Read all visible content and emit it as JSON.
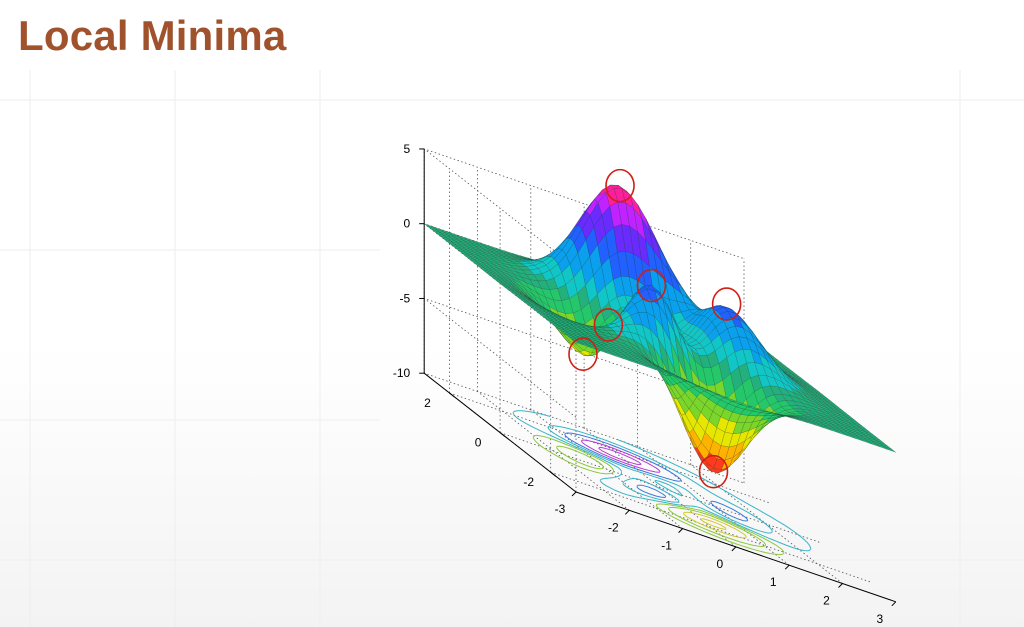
{
  "slide": {
    "title": "Local Minima"
  },
  "colors": {
    "title": "#a0522d",
    "marker": "#d21e14",
    "contour_pos": "#3ca0e6",
    "contour_neg": "#96c83c"
  },
  "chart_data": {
    "type": "surface3d",
    "title": "",
    "xlabel": "",
    "ylabel": "",
    "zlabel": "",
    "function": "peaks",
    "xlim": [
      -3,
      3
    ],
    "ylim": [
      -3,
      3
    ],
    "zlim": [
      -10,
      5
    ],
    "grid": true,
    "colormap": "hsv",
    "contour_projection": true,
    "x_ticks": [
      "-3",
      "-2",
      "-1",
      "0",
      "1",
      "2",
      "3"
    ],
    "y_ticks": [
      "-2",
      "0",
      "2"
    ],
    "z_ticks": [
      "5",
      "0",
      "-5",
      "-10"
    ],
    "highlighted_points": [
      {
        "x": 0,
        "y": 1.58,
        "z": 8.1
      },
      {
        "x": 1.25,
        "y": 0.0,
        "z": 3.8
      },
      {
        "x": -0.46,
        "y": -0.63,
        "z": 3.78
      },
      {
        "x": -0.85,
        "y": 0.25,
        "z": -0.5
      },
      {
        "x": -1.35,
        "y": 0.2,
        "z": -3.0
      },
      {
        "x": 0.23,
        "y": -1.63,
        "z": -6.5
      }
    ]
  }
}
